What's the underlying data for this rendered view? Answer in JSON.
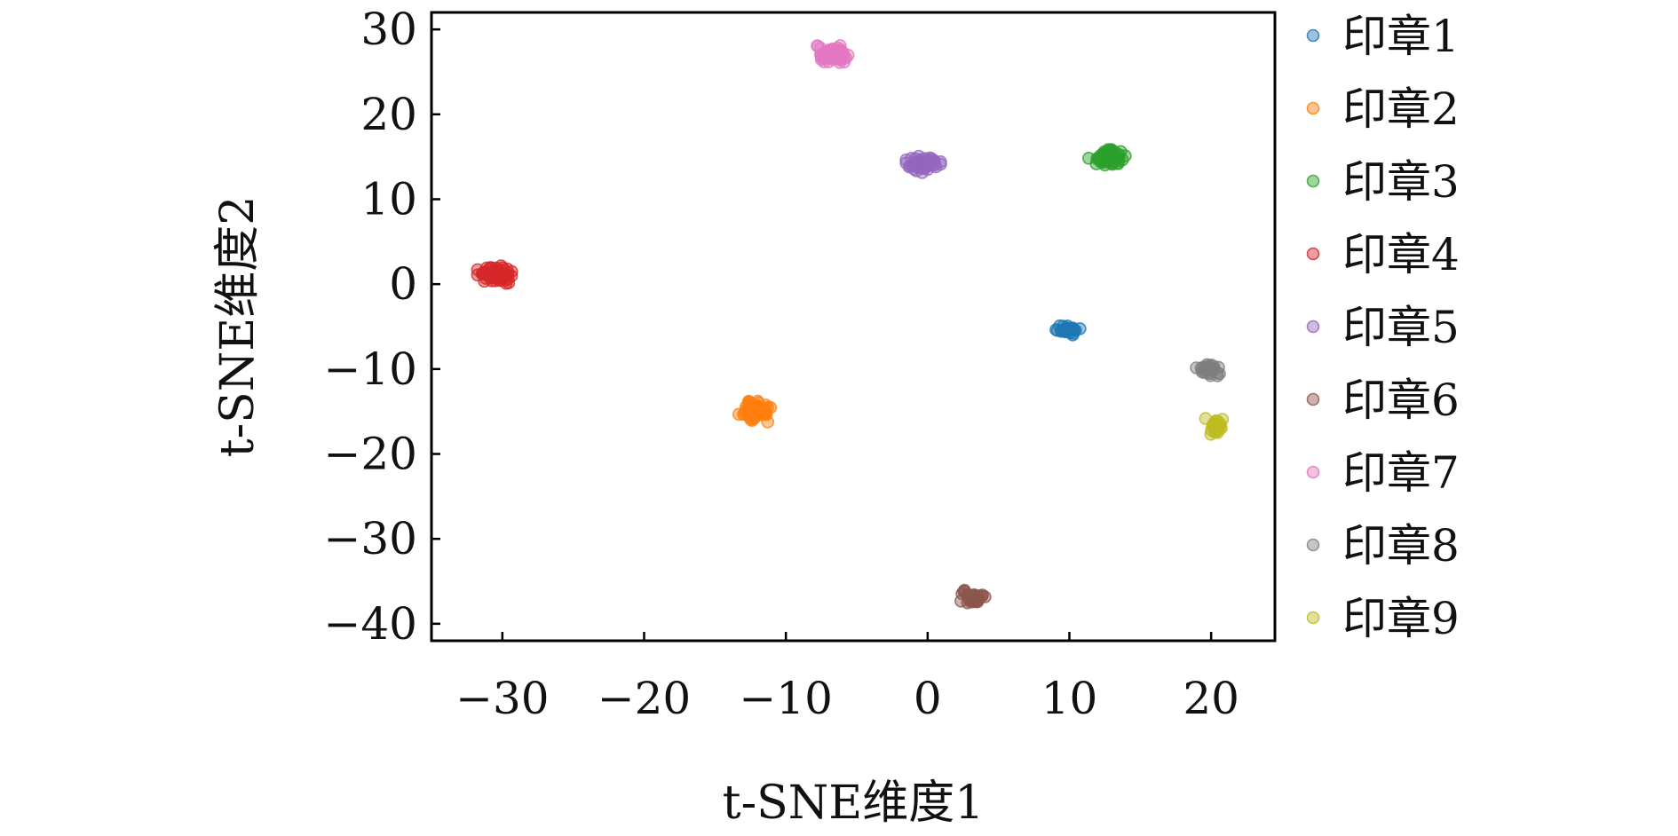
{
  "chart_data": {
    "type": "scatter",
    "title": "",
    "xlabel": "t-SNE维度1",
    "ylabel": "t-SNE维度2",
    "xlim": [
      -35,
      24.5
    ],
    "ylim": [
      -42,
      32
    ],
    "xticks": [
      -30,
      -20,
      -10,
      0,
      10,
      20
    ],
    "yticks": [
      30,
      20,
      10,
      0,
      -10,
      -20,
      -30,
      -40
    ],
    "xtick_labels": [
      "−30",
      "−20",
      "−10",
      "0",
      "10",
      "20"
    ],
    "ytick_labels": [
      "30",
      "20",
      "10",
      "0",
      "−10",
      "−20",
      "−30",
      "−40"
    ],
    "grid": false,
    "legend_position": "outside-right",
    "series": [
      {
        "name": "印章1",
        "color": "#1f77b4",
        "center": [
          9.9,
          -5.3
        ],
        "spread": [
          0.7,
          0.6
        ],
        "count": 25
      },
      {
        "name": "印章2",
        "color": "#ff7f0e",
        "center": [
          -12.1,
          -15.0
        ],
        "spread": [
          1.0,
          1.0
        ],
        "count": 60
      },
      {
        "name": "印章3",
        "color": "#2ca02c",
        "center": [
          12.7,
          15.0
        ],
        "spread": [
          1.1,
          0.8
        ],
        "count": 60
      },
      {
        "name": "印章4",
        "color": "#d62728",
        "center": [
          -30.3,
          1.1
        ],
        "spread": [
          1.2,
          0.9
        ],
        "count": 60
      },
      {
        "name": "印章5",
        "color": "#9467bd",
        "center": [
          -0.3,
          14.1
        ],
        "spread": [
          1.0,
          0.8
        ],
        "count": 50
      },
      {
        "name": "印章6",
        "color": "#8c564b",
        "center": [
          3.2,
          -36.9
        ],
        "spread": [
          0.7,
          0.7
        ],
        "count": 40
      },
      {
        "name": "印章7",
        "color": "#e377c2",
        "center": [
          -6.7,
          27.0
        ],
        "spread": [
          0.9,
          0.9
        ],
        "count": 60
      },
      {
        "name": "印章8",
        "color": "#7f7f7f",
        "center": [
          19.7,
          -10.0
        ],
        "spread": [
          0.8,
          0.7
        ],
        "count": 30
      },
      {
        "name": "印章9",
        "color": "#bcbd22",
        "center": [
          20.3,
          -16.8
        ],
        "spread": [
          0.6,
          0.8
        ],
        "count": 25
      }
    ]
  }
}
